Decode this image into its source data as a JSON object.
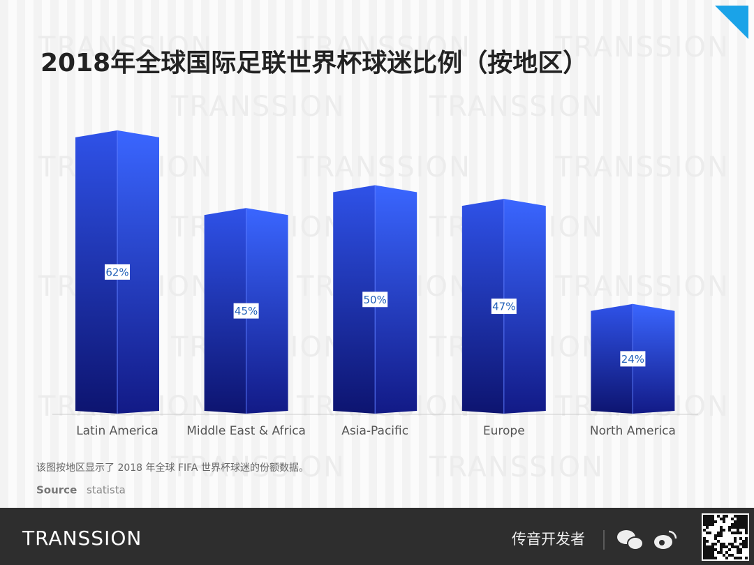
{
  "chart_data": {
    "type": "bar",
    "title": "2018年全球国际足联世界杯球迷比例（按地区）",
    "categories": [
      "Latin America",
      "Middle East & Africa",
      "Asia-Pacific",
      "Europe",
      "North America"
    ],
    "values": [
      62,
      45,
      50,
      47,
      24
    ],
    "value_labels": [
      "62%",
      "45%",
      "50%",
      "47%",
      "24%"
    ]
  },
  "watermark": "TRANSSION",
  "caption": "该图按地区显示了 2018 年全球 FIFA 世界杯球迷的份额数据。",
  "source": {
    "label": "Source",
    "value": "statista"
  },
  "footer": {
    "brand": "TRANSSION",
    "channel": "传音开发者"
  }
}
